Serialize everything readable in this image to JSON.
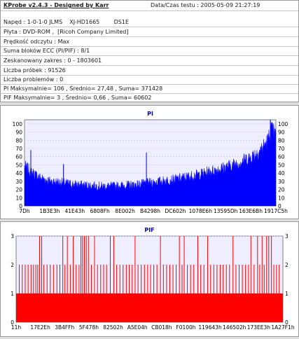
{
  "header": {
    "title": "KProbe v2.4.3 - Designed by Karr",
    "date_label": "Data/Czas testu :",
    "date_value": "2005-05-09 21:27:19"
  },
  "info": {
    "drive_label": "Napęd",
    "drive_id": "1-0-1-0 JLMS",
    "drive_model": "XJ-HD1665",
    "drive_fw": "DS1E",
    "disc_label": "Płyta",
    "disc_value": "DVD-ROM ,  [Ricoh Company Limited]",
    "speed_label": "Prędkość odczytu",
    "speed_value": "Max",
    "ecc_label": "Suma bloków ECC (PI/PIF)",
    "ecc_value": "8/1",
    "range_label": "Zeskanowany zakres",
    "range_value": "0 - 1803601",
    "samples_label": "Liczba próbek",
    "samples_value": "91526",
    "problems_label": "Liczba problemów",
    "problems_value": "0",
    "pi_line_label": "PI Maksymalnie=",
    "pi_max": "106",
    "pi_avg_label": "Średnio=",
    "pi_avg": "27,48",
    "pi_sum_label": "Suma=",
    "pi_sum": "371428",
    "pif_line_label": "PIF Maksymalnie=",
    "pif_max": "3",
    "pif_avg_label": "Średnio=",
    "pif_avg": "0,66",
    "pif_sum_label": "Suma=",
    "pif_sum": "60602"
  },
  "chart_data": [
    {
      "type": "area",
      "title": "PI",
      "xlabel": "",
      "ylabel": "",
      "ylim": [
        0,
        105
      ],
      "yticks": [
        0,
        10,
        20,
        30,
        40,
        50,
        60,
        70,
        80,
        90,
        100
      ],
      "xticks": [
        "7Dh",
        "1B3E3h",
        "41E43h",
        "6808Fh",
        "8E002h",
        "B4298h",
        "DC602h",
        "1078E6h",
        "13595Dh",
        "163E6Bh",
        "1917C5h"
      ],
      "grid": true,
      "color": "#0000ff",
      "x": [
        0,
        3,
        6,
        10,
        15,
        20,
        25,
        30,
        35,
        40,
        45,
        50,
        55,
        60,
        65,
        70,
        75,
        80,
        85,
        90,
        93,
        95,
        97,
        98,
        100
      ],
      "values": [
        45,
        38,
        32,
        28,
        26,
        24,
        23,
        22,
        22,
        23,
        24,
        26,
        28,
        30,
        33,
        36,
        40,
        44,
        49,
        56,
        62,
        68,
        76,
        88,
        80
      ],
      "spikes": [
        {
          "x": 2.5,
          "value": 68
        },
        {
          "x": 15.5,
          "value": 51
        },
        {
          "x": 48.5,
          "value": 65
        },
        {
          "x": 97.8,
          "value": 106
        }
      ]
    },
    {
      "type": "bar",
      "title": "PIF",
      "xlabel": "",
      "ylabel": "",
      "ylim": [
        0,
        3
      ],
      "yticks": [
        0,
        1,
        2,
        3
      ],
      "xticks": [
        "11h",
        "17E2Eh",
        "3B4FFh",
        "5F478h",
        "82502h",
        "A5E04h",
        "CB018h",
        "F0100h",
        "119643h",
        "146502h",
        "173EE3h",
        "1A27F1h"
      ],
      "grid": true,
      "color": "#ff0000",
      "baseline_value": 1,
      "peaks_value_3_x": [
        8.8,
        9.6,
        17.5,
        19.2,
        21.4,
        24.3,
        24.9,
        25.6,
        26.3,
        27.1,
        29.4,
        35.3,
        36.6,
        44.6,
        54.1,
        61.2,
        63.0,
        68.1,
        71.8,
        81.3,
        88.0,
        90.5,
        92.2,
        93.9,
        94.7,
        95.7
      ],
      "peaks_value_2_x": [
        1.2,
        2.3,
        3.4,
        4.5,
        5.6,
        6.5,
        7.4,
        8.1,
        10.4,
        11.6,
        12.8,
        14.0,
        15.3,
        16.4,
        18.3,
        20.3,
        22.5,
        23.6,
        28.2,
        30.5,
        31.7,
        32.8,
        33.9,
        37.7,
        38.9,
        40.1,
        41.3,
        42.4,
        43.5,
        45.7,
        46.9,
        48.1,
        49.3,
        50.4,
        51.6,
        52.8,
        55.2,
        56.4,
        57.6,
        58.8,
        60.0,
        62.2,
        64.2,
        65.4,
        66.6,
        69.2,
        70.4,
        72.9,
        74.1,
        75.3,
        76.5,
        77.6,
        78.8,
        80.0,
        82.4,
        83.6,
        84.8,
        86.0,
        87.1,
        89.2,
        91.3,
        93.0,
        96.6,
        97.6,
        98.6
      ]
    }
  ]
}
